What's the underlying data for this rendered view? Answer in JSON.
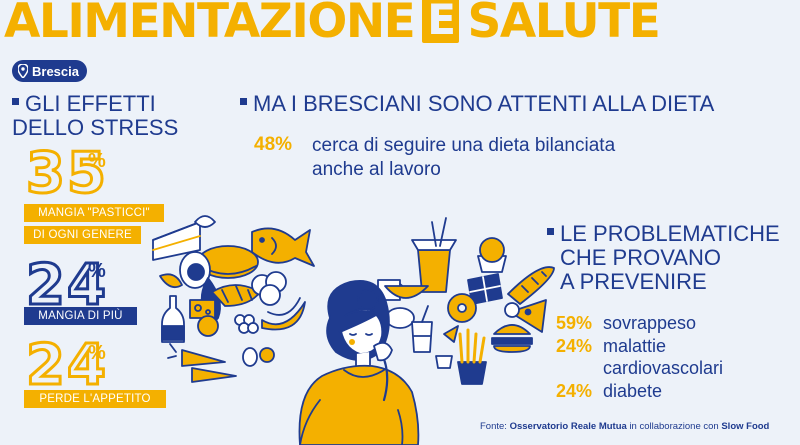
{
  "title": {
    "part1": "ALIMENTAZIONE",
    "connector": "E",
    "part2": "SALUTE"
  },
  "location": {
    "label": "Brescia",
    "icon": "map-pin-icon"
  },
  "stress": {
    "heading": "GLI EFFETTI DELLO STRESS",
    "stats": [
      {
        "value": "35",
        "unit": "%",
        "label_line1": "MANGIA \"PASTICCI\"",
        "label_line2": "DI OGNI GENERE"
      },
      {
        "value": "24",
        "unit": "%",
        "label_line1": "MANGIA DI PIÙ"
      },
      {
        "value": "24",
        "unit": "%",
        "label_line1": "PERDE L'APPETITO"
      }
    ]
  },
  "diet": {
    "heading": "MA I BRESCIANI SONO ATTENTI ALLA DIETA",
    "value": "48%",
    "text_line1": "cerca di seguire una dieta bilanciata",
    "text_line2": "anche al lavoro"
  },
  "problems": {
    "heading_line1": "LE PROBLEMATICHE",
    "heading_line2": "CHE PROVANO",
    "heading_line3": "A PREVENIRE",
    "items": [
      {
        "value": "59%",
        "label": "sovrappeso"
      },
      {
        "value": "24%",
        "label": "malattie cardiovascolari"
      },
      {
        "value": "24%",
        "label": "diabete"
      }
    ]
  },
  "source": {
    "prefix": "Fonte:",
    "org1": "Osservatorio Reale Mutua",
    "middle": "in collaborazione con",
    "org2": "Slow Food"
  },
  "colors": {
    "yellow": "#f4b000",
    "blue": "#1f3b8f",
    "background": "#edf2f9"
  }
}
